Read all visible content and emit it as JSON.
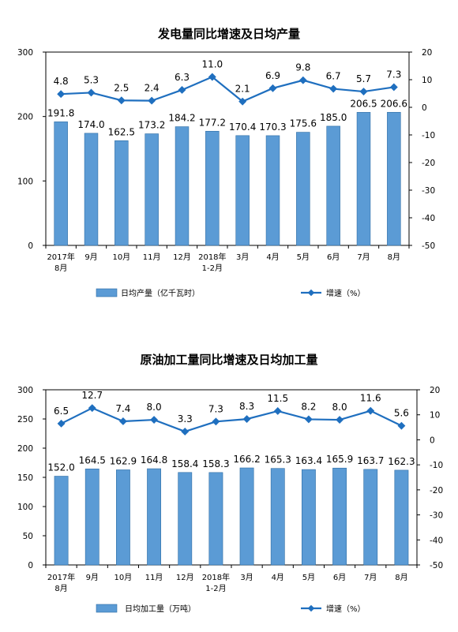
{
  "chart_data": [
    {
      "type": "bar+line",
      "title": "发电量同比增速及日均产量",
      "categories": [
        [
          "2017年",
          "8月"
        ],
        [
          "9月"
        ],
        [
          "10月"
        ],
        [
          "11月"
        ],
        [
          "12月"
        ],
        [
          "2018年",
          "1-2月"
        ],
        [
          "3月"
        ],
        [
          "4月"
        ],
        [
          "5月"
        ],
        [
          "6月"
        ],
        [
          "7月"
        ],
        [
          "8月"
        ]
      ],
      "y_left": {
        "min": 0,
        "max": 300,
        "ticks": [
          0,
          100,
          200,
          300
        ]
      },
      "y_right": {
        "min": -50,
        "max": 20,
        "ticks": [
          20,
          10,
          0,
          -10,
          -20,
          -30,
          -40,
          -50
        ]
      },
      "series": [
        {
          "name": "日均产量（亿千瓦时）",
          "type": "bar",
          "axis": "left",
          "color": "#5b9bd5",
          "values": [
            191.8,
            174.0,
            162.5,
            173.2,
            184.2,
            177.2,
            170.4,
            170.3,
            175.6,
            185.0,
            206.5,
            206.6
          ],
          "labels": [
            "191.8",
            "174.0",
            "162.5",
            "173.2",
            "184.2",
            "177.2",
            "170.4",
            "170.3",
            "175.6",
            "185.0",
            "206.5",
            "206.6"
          ]
        },
        {
          "name": "增速（%）",
          "type": "line",
          "axis": "right",
          "color": "#1f6fbf",
          "values": [
            4.8,
            5.3,
            2.5,
            2.4,
            6.3,
            11.0,
            2.1,
            6.9,
            9.8,
            6.7,
            5.7,
            7.3
          ],
          "labels": [
            "4.8",
            "5.3",
            "2.5",
            "2.4",
            "6.3",
            "11.0",
            "2.1",
            "6.9",
            "9.8",
            "6.7",
            "5.7",
            "7.3"
          ]
        }
      ]
    },
    {
      "type": "bar+line",
      "title": "原油加工量同比增速及日均加工量",
      "categories": [
        [
          "2017年",
          "8月"
        ],
        [
          "9月"
        ],
        [
          "10月"
        ],
        [
          "11月"
        ],
        [
          "12月"
        ],
        [
          "2018年",
          "1-2月"
        ],
        [
          "3月"
        ],
        [
          "4月"
        ],
        [
          "5月"
        ],
        [
          "6月"
        ],
        [
          "7月"
        ],
        [
          "8月"
        ]
      ],
      "y_left": {
        "min": 0,
        "max": 300,
        "ticks": [
          0,
          50,
          100,
          150,
          200,
          250,
          300
        ]
      },
      "y_right": {
        "min": -50,
        "max": 20,
        "ticks": [
          20,
          10,
          0,
          -10,
          -20,
          -30,
          -40,
          -50
        ]
      },
      "series": [
        {
          "name": "日均加工量（万吨）",
          "type": "bar",
          "axis": "left",
          "color": "#5b9bd5",
          "values": [
            152.0,
            164.5,
            162.9,
            164.8,
            158.4,
            158.3,
            166.2,
            165.3,
            163.4,
            165.9,
            163.7,
            162.3
          ],
          "labels": [
            "152.0",
            "164.5",
            "162.9",
            "164.8",
            "158.4",
            "158.3",
            "166.2",
            "165.3",
            "163.4",
            "165.9",
            "163.7",
            "162.3"
          ]
        },
        {
          "name": "增速（%）",
          "type": "line",
          "axis": "right",
          "color": "#1f6fbf",
          "values": [
            6.5,
            12.7,
            7.4,
            8.0,
            3.3,
            7.3,
            8.3,
            11.5,
            8.2,
            8.0,
            11.6,
            5.6
          ],
          "labels": [
            "6.5",
            "12.7",
            "7.4",
            "8.0",
            "3.3",
            "7.3",
            "8.3",
            "11.5",
            "8.2",
            "8.0",
            "11.6",
            "5.6"
          ]
        }
      ]
    }
  ]
}
